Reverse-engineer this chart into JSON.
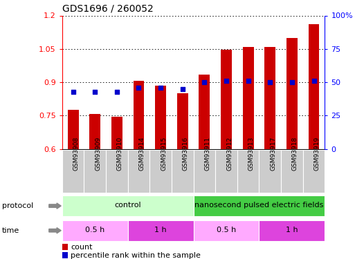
{
  "title": "GDS1696 / 260052",
  "samples": [
    "GSM93908",
    "GSM93909",
    "GSM93910",
    "GSM93914",
    "GSM93915",
    "GSM93916",
    "GSM93911",
    "GSM93912",
    "GSM93913",
    "GSM93917",
    "GSM93918",
    "GSM93919"
  ],
  "count_values": [
    0.775,
    0.757,
    0.745,
    0.905,
    0.885,
    0.852,
    0.935,
    1.047,
    1.06,
    1.06,
    1.1,
    1.16
  ],
  "percentile_values": [
    43,
    43,
    43,
    46,
    46,
    45,
    50,
    51,
    51,
    50,
    50,
    51
  ],
  "ylim_left": [
    0.6,
    1.2
  ],
  "ylim_right": [
    0,
    100
  ],
  "yticks_left": [
    0.6,
    0.75,
    0.9,
    1.05,
    1.2
  ],
  "ytick_labels_left": [
    "0.6",
    "0.75",
    "0.9",
    "1.05",
    "1.2"
  ],
  "yticks_right": [
    0,
    25,
    50,
    75,
    100
  ],
  "ytick_labels_right": [
    "0",
    "25",
    "50",
    "75",
    "100%"
  ],
  "bar_color": "#cc0000",
  "dot_color": "#0000cc",
  "protocol_light_green": "#ccffcc",
  "protocol_dark_green": "#44cc44",
  "time_light_pink": "#ffaaff",
  "time_dark_pink": "#dd44dd",
  "xtick_bg": "#cccccc",
  "protocol_labels": [
    {
      "label": "control",
      "start": 0,
      "end": 5,
      "color": "#ccffcc"
    },
    {
      "label": "nanosecond pulsed electric fields",
      "start": 6,
      "end": 11,
      "color": "#44cc44"
    }
  ],
  "time_labels": [
    {
      "label": "0.5 h",
      "start": 0,
      "end": 2,
      "color": "#ffaaff"
    },
    {
      "label": "1 h",
      "start": 3,
      "end": 5,
      "color": "#dd44dd"
    },
    {
      "label": "0.5 h",
      "start": 6,
      "end": 8,
      "color": "#ffaaff"
    },
    {
      "label": "1 h",
      "start": 9,
      "end": 11,
      "color": "#dd44dd"
    }
  ],
  "legend_count_label": "count",
  "legend_pct_label": "percentile rank within the sample",
  "bar_width": 0.5
}
